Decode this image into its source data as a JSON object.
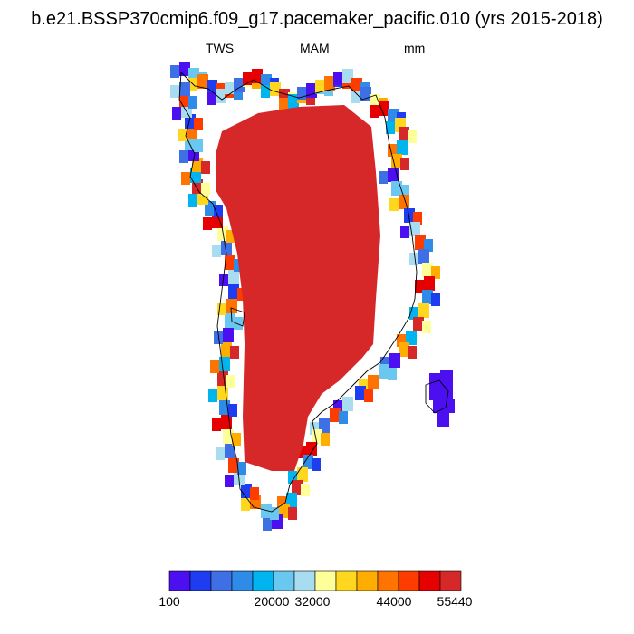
{
  "title": "b.e21.BSSP370cmip6.f09_g17.pacemaker_pacific.010 (yrs 2015-2018)",
  "left_label": "TWS",
  "center_label": "MAM",
  "right_label": "mm",
  "colorbar": {
    "colors": [
      "#4b0ff0",
      "#1f3df0",
      "#3f6fe4",
      "#2f8be8",
      "#00b4f0",
      "#6ac8f0",
      "#a8dcf0",
      "#ffff99",
      "#ffd71f",
      "#ffad00",
      "#ff7300",
      "#ff3c00",
      "#e60000",
      "#d62828"
    ],
    "labels": [
      "100",
      "20000",
      "32000",
      "44000",
      "55440"
    ]
  },
  "map_legend": {
    "interior_fill": "#d62828"
  }
}
